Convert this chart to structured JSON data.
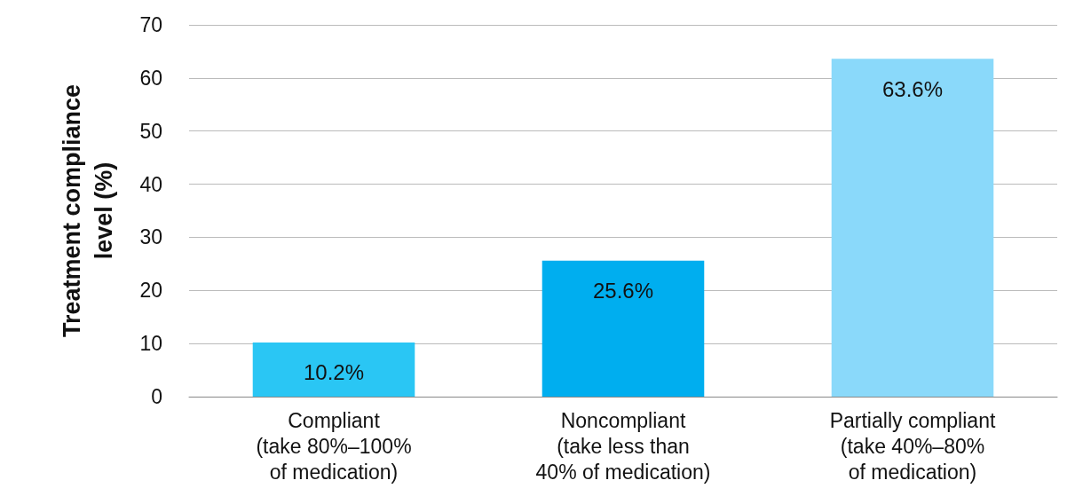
{
  "chart_data": {
    "type": "bar",
    "ylabel": "Treatment compliance\nlevel (%)",
    "categories": [
      "Compliant\n(take 80%–100%\nof medication)",
      "Noncompliant\n(take less than\n40% of medication)",
      "Partially compliant\n(take 40%–80%\nof medication)"
    ],
    "values": [
      10.2,
      25.6,
      63.6
    ],
    "colors": [
      "#2ac6f4",
      "#00aeef",
      "#8ad9fa"
    ],
    "value_labels": [
      "10.2%",
      "25.6%",
      "63.6%"
    ],
    "ylim": [
      0,
      70
    ],
    "yticks": [
      0,
      10,
      20,
      30,
      40,
      50,
      60,
      70
    ],
    "grid": "y"
  }
}
